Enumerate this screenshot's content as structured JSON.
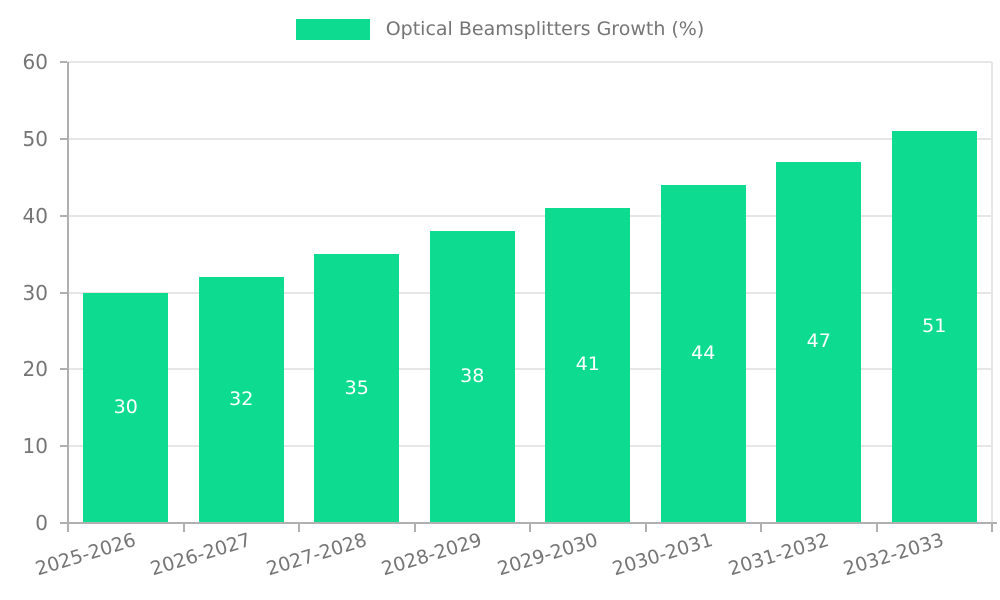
{
  "legend": {
    "label": "Optical Beamsplitters Growth (%)"
  },
  "chart_data": {
    "type": "bar",
    "title": "Optical Beamsplitters Growth (%)",
    "categories": [
      "2025-2026",
      "2026-2027",
      "2027-2028",
      "2028-2029",
      "2029-2030",
      "2030-2031",
      "2031-2032",
      "2032-2033"
    ],
    "values": [
      30,
      32,
      35,
      38,
      41,
      44,
      47,
      51
    ],
    "xlabel": "",
    "ylabel": "",
    "ylim": [
      0,
      60
    ],
    "yticks": [
      0,
      10,
      20,
      30,
      40,
      50,
      60
    ],
    "grid": true,
    "legend_position": "top-center",
    "value_labels": "inside-center-white",
    "colors": {
      "bar": "#0ddc90",
      "value_label": "#ffffff",
      "axis_text": "#757575",
      "gridline": "#e6e6e6",
      "axis_line": "#b0b0b0",
      "background": "#ffffff"
    }
  }
}
